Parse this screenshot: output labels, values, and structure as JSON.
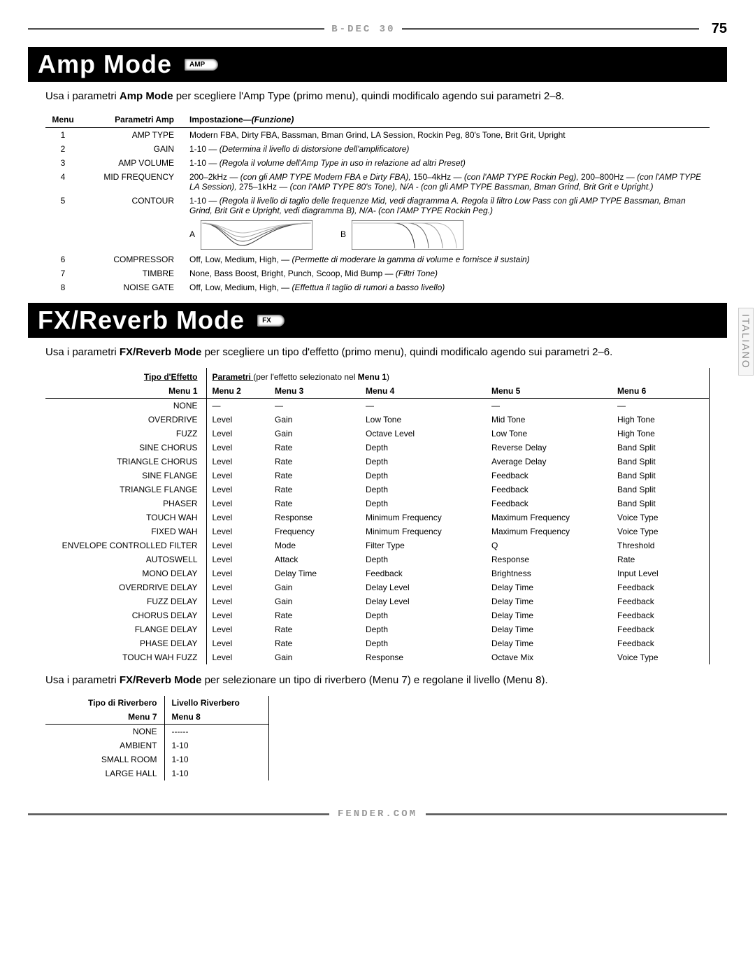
{
  "page": {
    "brand": "B-DEC 30",
    "number": "75",
    "footer": "fender.com",
    "side_tab": "ITALIANO"
  },
  "section_amp": {
    "title": "Amp Mode",
    "badge": "AMP",
    "intro_pre": "Usa i parametri ",
    "intro_bold": "Amp Mode",
    "intro_post": " per scegliere l'Amp Type (primo menu), quindi modificalo agendo sui parametri 2–8.",
    "headers": {
      "menu": "Menu",
      "param": "Parametri Amp",
      "setting": "Impostazione—",
      "func": "(Funzione)"
    },
    "rows": [
      {
        "menu": "1",
        "param": "AMP TYPE",
        "desc": "Modern FBA, Dirty FBA, Bassman, Bman Grind, LA Session, Rockin Peg, 80's Tone, Brit Grit, Upright"
      },
      {
        "menu": "2",
        "param": "GAIN",
        "desc": "1-10 — ",
        "func": "(Determina il livello di distorsione dell'amplificatore)"
      },
      {
        "menu": "3",
        "param": "AMP VOLUME",
        "desc": "1-10 — ",
        "func": "(Regola il volume dell'Amp Type in uso in relazione ad altri Preset)"
      },
      {
        "menu": "4",
        "param": "MID FREQUENCY",
        "desc": "200–2kHz — ",
        "func": "(con gli AMP TYPE Modern FBA e Dirty FBA), ",
        "desc2": "150–4kHz — ",
        "func2": "(con l'AMP TYPE Rockin Peg), ",
        "desc3": "200–800Hz — ",
        "func3": "(con l'AMP TYPE LA Session), ",
        "desc4": "275–1kHz — ",
        "func4": "(con l'AMP TYPE 80's Tone), N/A - (con gli AMP TYPE Bassman, Bman Grind, Brit Grit e Upright.)"
      },
      {
        "menu": "5",
        "param": "CONTOUR",
        "desc": "1-10 — ",
        "func": "(Regola il livello di taglio delle frequenze Mid, vedi diagramma A. Regola il filtro Low Pass con gli AMP TYPE Bassman, Bman Grind, Brit Grit e Upright, vedi diagramma B), N/A- (con l'AMP TYPE Rockin Peg.)"
      },
      {
        "menu": "6",
        "param": "COMPRESSOR",
        "desc": "Off, Low, Medium, High,  — ",
        "func": "(Permette di moderare la gamma di volume e fornisce il sustain)"
      },
      {
        "menu": "7",
        "param": "TIMBRE",
        "desc": "None, Bass Boost, Bright, Punch, Scoop, Mid Bump — ",
        "func": "(Filtri Tone)"
      },
      {
        "menu": "8",
        "param": "NOISE GATE",
        "desc": "Off, Low, Medium, High,  — ",
        "func": "(Effettua il taglio di rumori a basso livello)"
      }
    ],
    "diagram": {
      "a": "A",
      "b": "B"
    }
  },
  "section_fx": {
    "title": "FX/Reverb Mode",
    "badge": "FX",
    "intro_pre": "Usa i parametri ",
    "intro_bold": "FX/Reverb Mode",
    "intro_post": " per scegliere un tipo d'effetto (primo menu), quindi modificalo agendo sui parametri 2–6.",
    "hdr_type": "Tipo d'Effetto",
    "hdr_params_pre": "Parametri ",
    "hdr_params": "(per l'effetto selezionato nel ",
    "hdr_params_bold": "Menu 1",
    "hdr_params_post": ")",
    "cols": [
      "Menu 1",
      "Menu 2",
      "Menu 3",
      "Menu 4",
      "Menu 5",
      "Menu 6"
    ],
    "rows": [
      [
        "NONE",
        "—",
        "—",
        "—",
        "—",
        "—"
      ],
      [
        "OVERDRIVE",
        "Level",
        "Gain",
        "Low Tone",
        "Mid Tone",
        "High Tone"
      ],
      [
        "FUZZ",
        "Level",
        "Gain",
        "Octave Level",
        "Low Tone",
        "High Tone"
      ],
      [
        "SINE CHORUS",
        "Level",
        "Rate",
        "Depth",
        "Reverse Delay",
        "Band Split"
      ],
      [
        "TRIANGLE CHORUS",
        "Level",
        "Rate",
        "Depth",
        "Average Delay",
        "Band Split"
      ],
      [
        "SINE FLANGE",
        "Level",
        "Rate",
        "Depth",
        "Feedback",
        "Band Split"
      ],
      [
        "TRIANGLE FLANGE",
        "Level",
        "Rate",
        "Depth",
        "Feedback",
        "Band Split"
      ],
      [
        "PHASER",
        "Level",
        "Rate",
        "Depth",
        "Feedback",
        "Band Split"
      ],
      [
        "TOUCH WAH",
        "Level",
        "Response",
        "Minimum Frequency",
        "Maximum Frequency",
        "Voice Type"
      ],
      [
        "FIXED WAH",
        "Level",
        "Frequency",
        "Minimum Frequency",
        "Maximum Frequency",
        "Voice Type"
      ],
      [
        "ENVELOPE CONTROLLED FILTER",
        "Level",
        "Mode",
        "Filter Type",
        "Q",
        "Threshold"
      ],
      [
        "AUTOSWELL",
        "Level",
        "Attack",
        "Depth",
        "Response",
        "Rate"
      ],
      [
        "MONO DELAY",
        "Level",
        "Delay Time",
        "Feedback",
        "Brightness",
        "Input Level"
      ],
      [
        "OVERDRIVE DELAY",
        "Level",
        "Gain",
        "Delay Level",
        "Delay Time",
        "Feedback"
      ],
      [
        "FUZZ DELAY",
        "Level",
        "Gain",
        "Delay Level",
        "Delay Time",
        "Feedback"
      ],
      [
        "CHORUS DELAY",
        "Level",
        "Rate",
        "Depth",
        "Delay Time",
        "Feedback"
      ],
      [
        "FLANGE DELAY",
        "Level",
        "Rate",
        "Depth",
        "Delay Time",
        "Feedback"
      ],
      [
        "PHASE DELAY",
        "Level",
        "Rate",
        "Depth",
        "Delay Time",
        "Feedback"
      ],
      [
        "TOUCH WAH FUZZ",
        "Level",
        "Gain",
        "Response",
        "Octave Mix",
        "Voice Type"
      ]
    ],
    "intro2_pre": "Usa i parametri ",
    "intro2_bold": "FX/Reverb Mode",
    "intro2_post": " per selezionare un tipo di riverbero (Menu 7) e regolane il livello (Menu 8)."
  },
  "section_rv": {
    "h1a": "Tipo di Riverbero",
    "h1b": "Livello Riverbero",
    "h2a": "Menu 7",
    "h2b": "Menu 8",
    "rows": [
      [
        "NONE",
        "------"
      ],
      [
        "AMBIENT",
        "1-10"
      ],
      [
        "SMALL ROOM",
        "1-10"
      ],
      [
        "LARGE HALL",
        "1-10"
      ]
    ]
  }
}
